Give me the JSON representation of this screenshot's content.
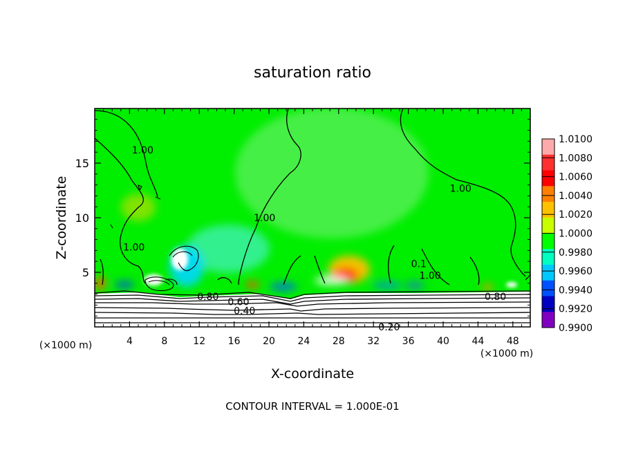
{
  "chart_data": {
    "type": "heatmap",
    "title": "saturation ratio",
    "xlabel": "X-coordinate",
    "ylabel": "Z-coordinate",
    "x_unit_label": "(×1000 m)",
    "x_unit_label_right": "(×1000 m)",
    "xlim": [
      0,
      50
    ],
    "ylim": [
      0,
      20
    ],
    "x_ticks": [
      4,
      8,
      12,
      16,
      20,
      24,
      28,
      32,
      36,
      40,
      44,
      48
    ],
    "y_ticks": [
      5,
      10,
      15
    ],
    "footer": "CONTOUR INTERVAL = 1.000E-01",
    "colorbar": {
      "levels": [
        "1.0100",
        "1.0080",
        "1.0060",
        "1.0040",
        "1.0020",
        "1.0000",
        "0.9980",
        "0.9960",
        "0.9940",
        "0.9920",
        "0.9900"
      ],
      "colors": [
        "#ffaaaa",
        "#ff3030",
        "#ff0000",
        "#ff8000",
        "#ffc000",
        "#c8ff00",
        "#00ff00",
        "#00ffc0",
        "#00c8ff",
        "#0050ff",
        "#0000c0",
        "#8000c0"
      ]
    },
    "contour_labels": [
      {
        "text": "1.00",
        "x": 5.5,
        "z": 16.2
      },
      {
        "text": "1.00",
        "x": 4.5,
        "z": 7.3
      },
      {
        "text": "1.00",
        "x": 19.5,
        "z": 10.0
      },
      {
        "text": "1.00",
        "x": 42.0,
        "z": 12.7
      },
      {
        "text": "1.00",
        "x": 38.5,
        "z": 4.7
      },
      {
        "text": "0.1",
        "x": 37.2,
        "z": 5.8
      },
      {
        "text": "0.80",
        "x": 13.0,
        "z": 2.8
      },
      {
        "text": "0.60",
        "x": 16.5,
        "z": 2.3
      },
      {
        "text": "0.40",
        "x": 17.2,
        "z": 1.5
      },
      {
        "text": "0.80",
        "x": 46.0,
        "z": 2.8
      },
      {
        "text": "0.20",
        "x": 33.8,
        "z": 0.0
      }
    ]
  }
}
